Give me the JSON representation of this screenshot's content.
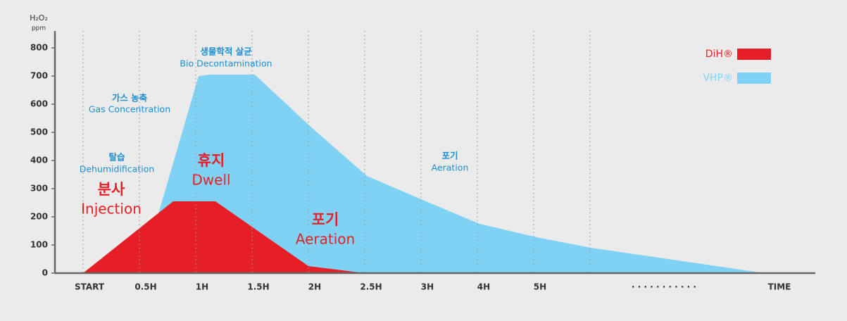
{
  "chart_data": {
    "type": "area",
    "y_label": "H₂O₂",
    "y_unit": "ppm",
    "xlim": [
      -0.5,
      13
    ],
    "ylim": [
      0,
      860
    ],
    "yticks": [
      0,
      100,
      200,
      300,
      400,
      500,
      600,
      700,
      800
    ],
    "xticks": [
      {
        "value": 0,
        "label": "START"
      },
      {
        "value": 1,
        "label": "0.5H"
      },
      {
        "value": 2,
        "label": "1H"
      },
      {
        "value": 3,
        "label": "1.5H"
      },
      {
        "value": 4,
        "label": "2H"
      },
      {
        "value": 5,
        "label": "2.5H"
      },
      {
        "value": 6,
        "label": "3H"
      },
      {
        "value": 7,
        "label": "4H"
      },
      {
        "value": 8,
        "label": "5H"
      },
      {
        "value": 10.2,
        "label": "· · · · · · · · · · ·"
      },
      {
        "value": 12.25,
        "label": "TIME"
      }
    ],
    "xgrid": [
      0,
      1,
      2,
      3,
      4,
      5,
      6,
      7,
      8,
      9
    ],
    "legend": "upper right",
    "series": [
      {
        "name": "VHP®",
        "color": "#80d2f5",
        "x": [
          1.03,
          2.05,
          2.25,
          3.05,
          4.04,
          5.04,
          6.05,
          7.04,
          8.04,
          9.02,
          12.1
        ],
        "values": [
          0,
          700,
          705,
          705,
          520,
          345,
          258,
          175,
          128,
          90,
          0
        ]
      },
      {
        "name": "DiH®",
        "color": "#e61f26",
        "x": [
          0,
          1.6,
          2.35,
          4.0,
          5.0
        ],
        "values": [
          0,
          255,
          255,
          25,
          0
        ]
      }
    ],
    "annotations": [
      {
        "ko": "생물학적 살균",
        "en": "Bio Decontamination"
      },
      {
        "ko": "가스 농축",
        "en": "Gas Concentration"
      },
      {
        "ko": "탈습",
        "en": "Dehumidification"
      },
      {
        "ko": "분사",
        "en": "Injection"
      },
      {
        "ko": "휴지",
        "en": "Dwell"
      },
      {
        "ko": "포기",
        "en": "Aeration"
      },
      {
        "ko": "포기",
        "en": "Aeration"
      }
    ]
  }
}
